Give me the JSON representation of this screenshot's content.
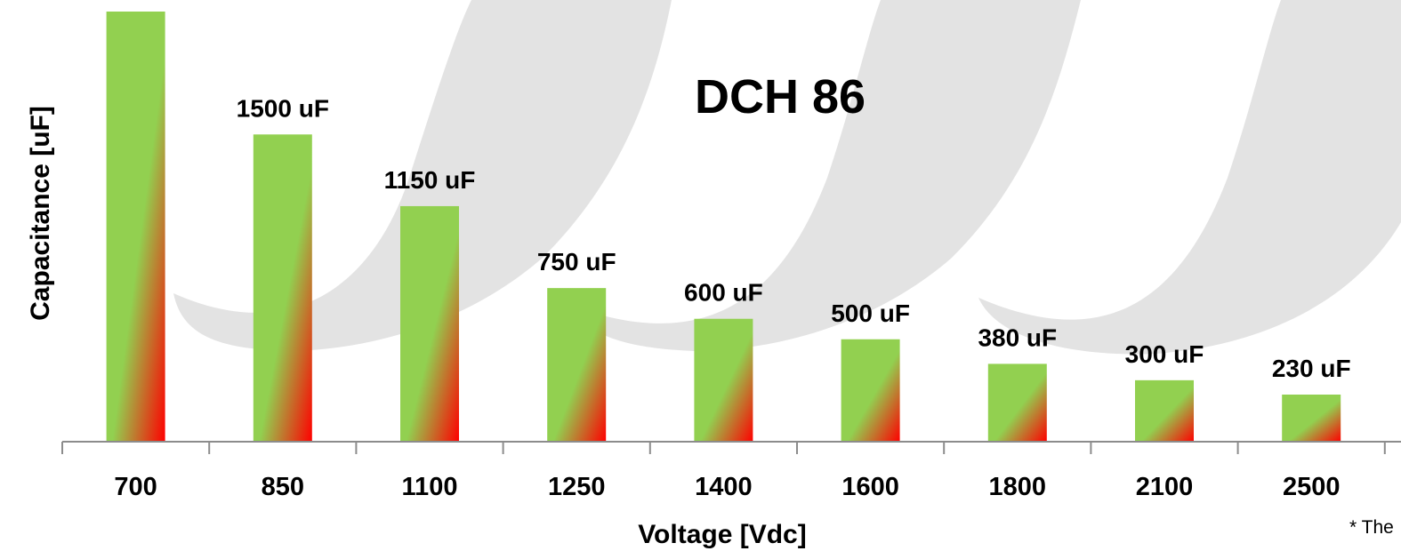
{
  "chart_data": {
    "type": "bar",
    "title": "DCH 86",
    "xlabel": "Voltage [Vdc]",
    "ylabel": "Capacitance [uF]",
    "categories": [
      "700",
      "850",
      "1100",
      "1250",
      "1400",
      "1600",
      "1800",
      "2100",
      "2500"
    ],
    "values": [
      2100,
      1500,
      1150,
      750,
      600,
      500,
      380,
      300,
      230
    ],
    "data_labels": [
      "",
      "1500 uF",
      "1150 uF",
      "750 uF",
      "600 uF",
      "500 uF",
      "380 uF",
      "300 uF",
      "230 uF"
    ],
    "ylim": [
      0,
      2100
    ],
    "grid": false,
    "legend": "none",
    "footnote": "* The",
    "colors": {
      "bar_top": "#92d050",
      "bar_bottom": "#ff0000",
      "axis": "#8c8c8c",
      "watermark": "#e3e3e3"
    }
  }
}
